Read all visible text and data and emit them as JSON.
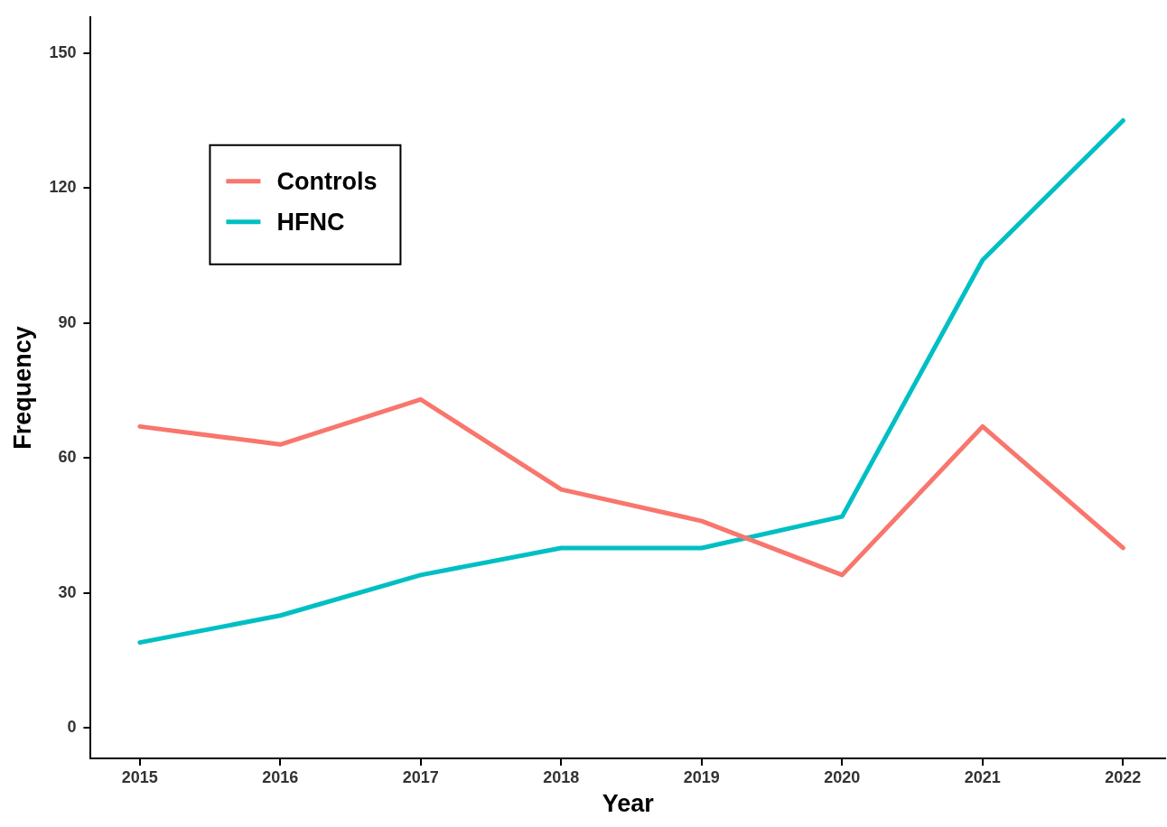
{
  "chart_data": {
    "type": "line",
    "xlabel": "Year",
    "ylabel": "Frequency",
    "x": [
      2015,
      2016,
      2017,
      2018,
      2019,
      2020,
      2021,
      2022
    ],
    "series": [
      {
        "name": "Controls",
        "color": "#f8766d",
        "values": [
          67,
          63,
          73,
          53,
          46,
          34,
          67,
          40
        ]
      },
      {
        "name": "HFNC",
        "color": "#00bfc4",
        "values": [
          19,
          25,
          34,
          40,
          40,
          47,
          104,
          135
        ]
      }
    ],
    "xlim": [
      2014.65,
      2022.3
    ],
    "xticks": [
      2015,
      2016,
      2017,
      2018,
      2019,
      2020,
      2021,
      2022
    ],
    "ylim": [
      -6.75,
      158
    ],
    "yticks": [
      0,
      30,
      60,
      90,
      120,
      150
    ],
    "grid": false,
    "legend": "top left",
    "marker": "none",
    "line_style": "solid"
  }
}
